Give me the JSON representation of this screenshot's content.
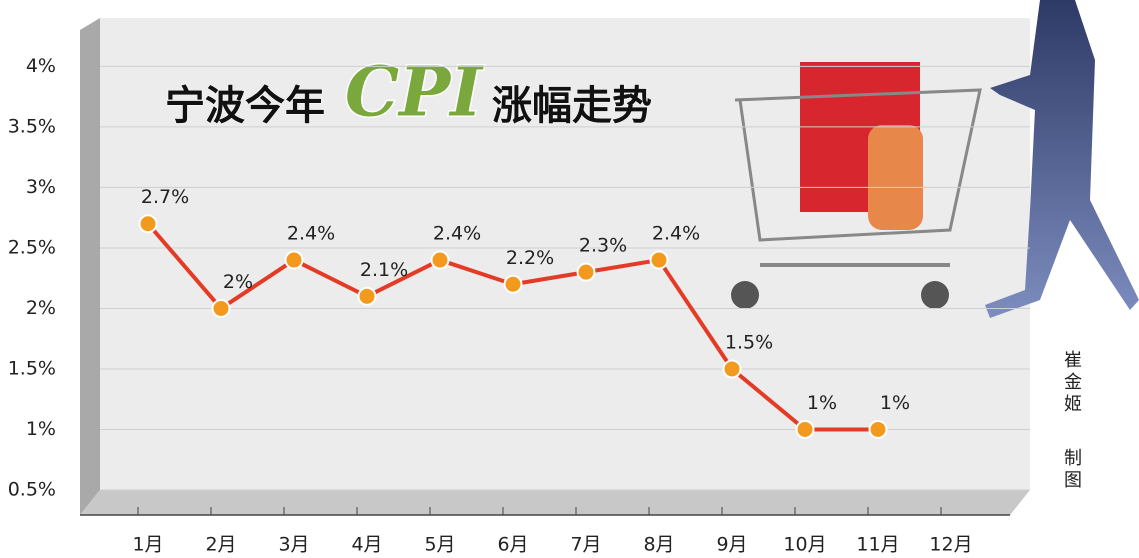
{
  "chart_data": {
    "type": "line",
    "title": [
      "宁波今年",
      "CPI",
      "涨幅走势"
    ],
    "credit": [
      "崔金姬",
      "制图"
    ],
    "categories": [
      "1月",
      "2月",
      "3月",
      "4月",
      "5月",
      "6月",
      "7月",
      "8月",
      "9月",
      "10月",
      "11月",
      "12月"
    ],
    "values": [
      2.7,
      2,
      2.4,
      2.1,
      2.4,
      2.2,
      2.3,
      2.4,
      1.5,
      1,
      1,
      null
    ],
    "value_labels": [
      "2.7%",
      "2%",
      "2.4%",
      "2.1%",
      "2.4%",
      "2.2%",
      "2.3%",
      "2.4%",
      "1.5%",
      "1%",
      "1%",
      null
    ],
    "color": "#e33b26",
    "marker_color": "#f39a1e",
    "ylim": [
      0.5,
      4.4
    ],
    "yticks": [
      {
        "value": 0.5,
        "label": "0.5%"
      },
      {
        "value": 1,
        "label": "1%"
      },
      {
        "value": 1.5,
        "label": "1.5%"
      },
      {
        "value": 2,
        "label": "2%"
      },
      {
        "value": 2.5,
        "label": "2.5%"
      },
      {
        "value": 3,
        "label": "3%"
      },
      {
        "value": 3.5,
        "label": "3.5%"
      },
      {
        "value": 4,
        "label": "4%"
      }
    ],
    "grid": true
  }
}
